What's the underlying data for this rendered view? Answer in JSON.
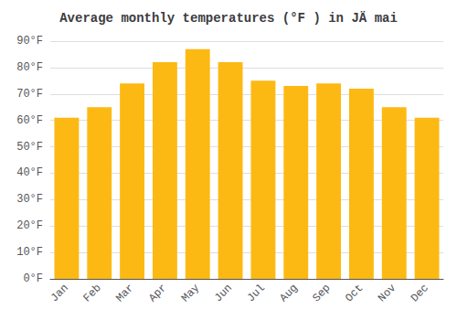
{
  "chart_data": {
    "type": "bar",
    "title": "Average monthly temperatures (°F ) in JÄ mai",
    "categories": [
      "Jan",
      "Feb",
      "Mar",
      "Apr",
      "May",
      "Jun",
      "Jul",
      "Aug",
      "Sep",
      "Oct",
      "Nov",
      "Dec"
    ],
    "values": [
      61,
      65,
      74,
      82,
      87,
      82,
      75,
      73,
      74,
      72,
      65,
      61
    ],
    "color": "#FDB913",
    "ylim": [
      0,
      90
    ],
    "yticks": [
      {
        "value": 0,
        "label": "0°F"
      },
      {
        "value": 10,
        "label": "10°F"
      },
      {
        "value": 20,
        "label": "20°F"
      },
      {
        "value": 30,
        "label": "30°F"
      },
      {
        "value": 40,
        "label": "40°F"
      },
      {
        "value": 50,
        "label": "50°F"
      },
      {
        "value": 60,
        "label": "60°F"
      },
      {
        "value": 70,
        "label": "70°F"
      },
      {
        "value": 80,
        "label": "80°F"
      },
      {
        "value": 90,
        "label": "90°F"
      }
    ],
    "grid": true
  }
}
